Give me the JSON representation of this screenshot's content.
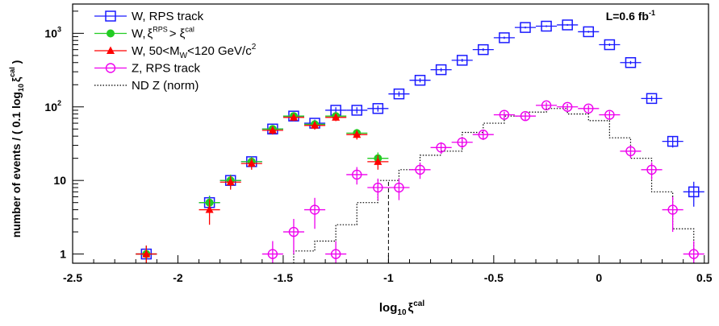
{
  "chart_data": {
    "type": "scatter",
    "title": "",
    "xlabel": "log",
    "xlabel_sub": "10",
    "xlabel_symbol": "ξ",
    "xlabel_sup": "cal",
    "ylabel": "number of events / ( 0.1 log",
    "ylabel_sub": "10",
    "ylabel_symbol": "ξ",
    "ylabel_sup": "cal",
    "ylabel_close": " )",
    "lumi_label": "L=0.6 fb",
    "lumi_sup": "-1",
    "xlim": [
      -2.5,
      0.52
    ],
    "ylim": [
      0.75,
      2500
    ],
    "yscale": "log",
    "grid": false,
    "legend_position": "top-left",
    "xticks": [
      {
        "v": -2.5,
        "label": "-2.5"
      },
      {
        "v": -2,
        "label": "-2"
      },
      {
        "v": -1.5,
        "label": "-1.5"
      },
      {
        "v": -1,
        "label": "-1"
      },
      {
        "v": -0.5,
        "label": "-0.5"
      },
      {
        "v": 0,
        "label": "0"
      },
      {
        "v": 0.5,
        "label": "0.5"
      }
    ],
    "yticks": [
      {
        "v": 1,
        "label": "1"
      },
      {
        "v": 10,
        "label": "10"
      },
      {
        "v": 100,
        "label": "10",
        "sup": "2"
      },
      {
        "v": 1000,
        "label": "10",
        "sup": "3"
      }
    ],
    "cut_line_x": -1.0,
    "series": [
      {
        "name": "W, RPS track",
        "legend_suffix": "",
        "marker": "open-square",
        "color": "#1a1aff",
        "points": [
          {
            "x": -2.15,
            "y": 1,
            "e": 0.3
          },
          {
            "x": -1.85,
            "y": 5,
            "e": 1.2
          },
          {
            "x": -1.75,
            "y": 10,
            "e": 2
          },
          {
            "x": -1.65,
            "y": 18,
            "e": 3
          },
          {
            "x": -1.55,
            "y": 50,
            "e": 6
          },
          {
            "x": -1.45,
            "y": 75,
            "e": 8
          },
          {
            "x": -1.35,
            "y": 60,
            "e": 7
          },
          {
            "x": -1.25,
            "y": 90,
            "e": 9
          },
          {
            "x": -1.15,
            "y": 90,
            "e": 9
          },
          {
            "x": -1.05,
            "y": 95,
            "e": 9
          },
          {
            "x": -0.95,
            "y": 150,
            "e": 12
          },
          {
            "x": -0.85,
            "y": 230,
            "e": 15
          },
          {
            "x": -0.75,
            "y": 320,
            "e": 18
          },
          {
            "x": -0.65,
            "y": 430,
            "e": 20
          },
          {
            "x": -0.55,
            "y": 600,
            "e": 25
          },
          {
            "x": -0.45,
            "y": 870,
            "e": 30
          },
          {
            "x": -0.35,
            "y": 1200,
            "e": 35
          },
          {
            "x": -0.25,
            "y": 1250,
            "e": 35
          },
          {
            "x": -0.15,
            "y": 1300,
            "e": 36
          },
          {
            "x": -0.05,
            "y": 1050,
            "e": 32
          },
          {
            "x": 0.05,
            "y": 700,
            "e": 26
          },
          {
            "x": 0.15,
            "y": 400,
            "e": 20
          },
          {
            "x": 0.25,
            "y": 130,
            "e": 11
          },
          {
            "x": 0.35,
            "y": 34,
            "e": 6
          },
          {
            "x": 0.45,
            "y": 7,
            "e": 2.6
          }
        ]
      },
      {
        "name": "W,",
        "legend_suffix": "ξ^RPS > ξ^cal",
        "marker": "filled-circle",
        "color": "#22cc22",
        "points": [
          {
            "x": -2.15,
            "y": 1,
            "e": 0.3
          },
          {
            "x": -1.85,
            "y": 5,
            "e": 1.2
          },
          {
            "x": -1.75,
            "y": 10,
            "e": 2
          },
          {
            "x": -1.65,
            "y": 18,
            "e": 3
          },
          {
            "x": -1.55,
            "y": 50,
            "e": 6
          },
          {
            "x": -1.45,
            "y": 75,
            "e": 8
          },
          {
            "x": -1.35,
            "y": 58,
            "e": 7
          },
          {
            "x": -1.25,
            "y": 75,
            "e": 8
          },
          {
            "x": -1.15,
            "y": 44,
            "e": 6
          },
          {
            "x": -1.05,
            "y": 20,
            "e": 4
          }
        ]
      },
      {
        "name": "W, 50<M",
        "legend_suffix": "W <120 GeV/c 2",
        "marker": "filled-triangle",
        "color": "#ff0000",
        "points": [
          {
            "x": -2.15,
            "y": 1,
            "e": 0.3
          },
          {
            "x": -1.85,
            "y": 4,
            "e": 1.5
          },
          {
            "x": -1.75,
            "y": 9.5,
            "e": 2
          },
          {
            "x": -1.65,
            "y": 17,
            "e": 3
          },
          {
            "x": -1.55,
            "y": 48,
            "e": 6
          },
          {
            "x": -1.45,
            "y": 72,
            "e": 8
          },
          {
            "x": -1.35,
            "y": 56,
            "e": 7
          },
          {
            "x": -1.25,
            "y": 72,
            "e": 8
          },
          {
            "x": -1.15,
            "y": 42,
            "e": 6
          },
          {
            "x": -1.05,
            "y": 18,
            "e": 4
          }
        ]
      },
      {
        "name": "Z, RPS track",
        "legend_suffix": "",
        "marker": "open-circle",
        "color": "#ee00ee",
        "points": [
          {
            "x": -1.55,
            "y": 1,
            "e": 0.5
          },
          {
            "x": -1.45,
            "y": 2,
            "e": 1
          },
          {
            "x": -1.35,
            "y": 4,
            "e": 1.8
          },
          {
            "x": -1.25,
            "y": 1,
            "e": 0.5
          },
          {
            "x": -1.15,
            "y": 12,
            "e": 3.2
          },
          {
            "x": -1.05,
            "y": 8,
            "e": 2.6
          },
          {
            "x": -0.95,
            "y": 8,
            "e": 2.6
          },
          {
            "x": -0.85,
            "y": 14,
            "e": 3.5
          },
          {
            "x": -0.75,
            "y": 28,
            "e": 5
          },
          {
            "x": -0.65,
            "y": 33,
            "e": 5.5
          },
          {
            "x": -0.55,
            "y": 42,
            "e": 6.5
          },
          {
            "x": -0.45,
            "y": 78,
            "e": 8.5
          },
          {
            "x": -0.35,
            "y": 75,
            "e": 8.5
          },
          {
            "x": -0.25,
            "y": 105,
            "e": 10
          },
          {
            "x": -0.15,
            "y": 100,
            "e": 10
          },
          {
            "x": -0.05,
            "y": 95,
            "e": 10
          },
          {
            "x": 0.05,
            "y": 78,
            "e": 9
          },
          {
            "x": 0.15,
            "y": 25,
            "e": 5
          },
          {
            "x": 0.25,
            "y": 14,
            "e": 3.7
          },
          {
            "x": 0.35,
            "y": 4,
            "e": 2
          },
          {
            "x": 0.45,
            "y": 1,
            "e": 0.5
          }
        ]
      },
      {
        "name": "ND Z (norm)",
        "legend_suffix": "",
        "marker": "dotted-histogram",
        "color": "#000000",
        "bins": [
          {
            "lo": -1.45,
            "hi": -1.35,
            "y": 1.1
          },
          {
            "lo": -1.35,
            "hi": -1.25,
            "y": 1.5
          },
          {
            "lo": -1.25,
            "hi": -1.15,
            "y": 2.5
          },
          {
            "lo": -1.15,
            "hi": -1.05,
            "y": 5
          },
          {
            "lo": -1.05,
            "hi": -0.95,
            "y": 10
          },
          {
            "lo": -0.95,
            "hi": -0.85,
            "y": 14
          },
          {
            "lo": -0.85,
            "hi": -0.75,
            "y": 22
          },
          {
            "lo": -0.75,
            "hi": -0.65,
            "y": 25
          },
          {
            "lo": -0.65,
            "hi": -0.55,
            "y": 45
          },
          {
            "lo": -0.55,
            "hi": -0.45,
            "y": 60
          },
          {
            "lo": -0.45,
            "hi": -0.35,
            "y": 75
          },
          {
            "lo": -0.35,
            "hi": -0.25,
            "y": 85
          },
          {
            "lo": -0.25,
            "hi": -0.15,
            "y": 95
          },
          {
            "lo": -0.15,
            "hi": -0.05,
            "y": 80
          },
          {
            "lo": -0.05,
            "hi": 0.05,
            "y": 65
          },
          {
            "lo": 0.05,
            "hi": 0.15,
            "y": 38
          },
          {
            "lo": 0.15,
            "hi": 0.25,
            "y": 20
          },
          {
            "lo": 0.25,
            "hi": 0.35,
            "y": 7
          },
          {
            "lo": 0.35,
            "hi": 0.45,
            "y": 2.2
          }
        ]
      }
    ]
  }
}
